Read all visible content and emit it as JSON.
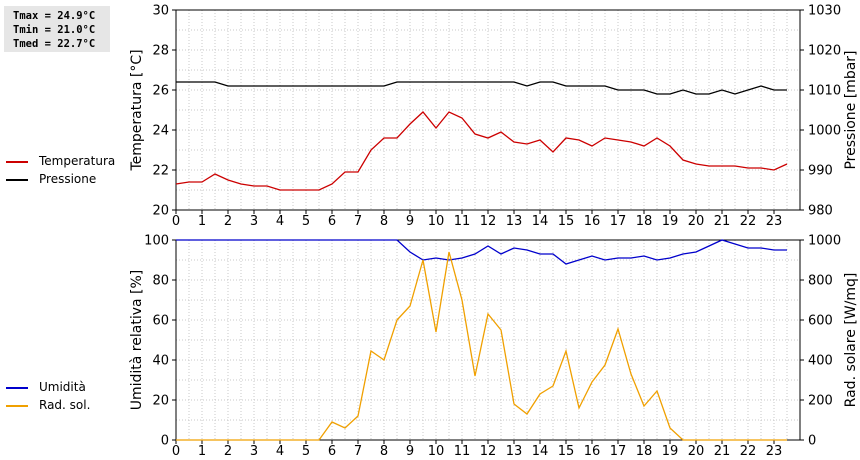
{
  "stats": {
    "tmax": "Tmax = 24.9°C",
    "tmin": "Tmin = 21.0°C",
    "tmed": "Tmed = 22.7°C"
  },
  "colors": {
    "temperature": "#cc0000",
    "pressure": "#000000",
    "humidity": "#0000cc",
    "solar": "#f0a000",
    "grid": "#c8c8c8"
  },
  "legend_top": [
    {
      "label": "Temperatura",
      "color": "#cc0000"
    },
    {
      "label": "Pressione",
      "color": "#000000"
    }
  ],
  "legend_bottom": [
    {
      "label": "Umidità",
      "color": "#0000cc"
    },
    {
      "label": "Rad. sol.",
      "color": "#f0a000"
    }
  ],
  "chart_data": [
    {
      "type": "line",
      "ylabel": "Temperatura [°C]",
      "y2label": "Pressione [mbar]",
      "ylim": [
        20,
        30
      ],
      "y2lim": [
        980,
        1030
      ],
      "yticks": [
        20,
        22,
        24,
        26,
        28,
        30
      ],
      "y2ticks": [
        980,
        990,
        1000,
        1010,
        1020,
        1030
      ],
      "xlim": [
        0,
        24
      ],
      "xticks": [
        0,
        1,
        2,
        3,
        4,
        5,
        6,
        7,
        8,
        9,
        10,
        11,
        12,
        13,
        14,
        15,
        16,
        17,
        18,
        19,
        20,
        21,
        22,
        23
      ],
      "grid": true,
      "x": [
        0,
        0.5,
        1,
        1.5,
        2,
        2.5,
        3,
        3.5,
        4,
        4.5,
        5,
        5.5,
        6,
        6.5,
        7,
        7.5,
        8,
        8.5,
        9,
        9.5,
        10,
        10.5,
        11,
        11.5,
        12,
        12.5,
        13,
        13.5,
        14,
        14.5,
        15,
        15.5,
        16,
        16.5,
        17,
        17.5,
        18,
        18.5,
        19,
        19.5,
        20,
        20.5,
        21,
        21.5,
        22,
        22.5,
        23,
        23.5
      ],
      "series": [
        {
          "name": "Temperatura",
          "axis": "left",
          "values": [
            21.3,
            21.4,
            21.4,
            21.8,
            21.5,
            21.3,
            21.2,
            21.2,
            21.0,
            21.0,
            21.0,
            21.0,
            21.3,
            21.9,
            21.9,
            23.0,
            23.6,
            23.6,
            24.3,
            24.9,
            24.1,
            24.9,
            24.6,
            23.8,
            23.6,
            23.9,
            23.4,
            23.3,
            23.5,
            22.9,
            23.6,
            23.5,
            23.2,
            23.6,
            23.5,
            23.4,
            23.2,
            23.6,
            23.2,
            22.5,
            22.3,
            22.2,
            22.2,
            22.2,
            22.1,
            22.1,
            22.0,
            22.3
          ]
        },
        {
          "name": "Pressione",
          "axis": "right",
          "values": [
            1012,
            1012,
            1012,
            1012,
            1011,
            1011,
            1011,
            1011,
            1011,
            1011,
            1011,
            1011,
            1011,
            1011,
            1011,
            1011,
            1011,
            1012,
            1012,
            1012,
            1012,
            1012,
            1012,
            1012,
            1012,
            1012,
            1012,
            1011,
            1012,
            1012,
            1011,
            1011,
            1011,
            1011,
            1010,
            1010,
            1010,
            1009,
            1009,
            1010,
            1009,
            1009,
            1010,
            1009,
            1010,
            1011,
            1010,
            1010
          ]
        }
      ]
    },
    {
      "type": "line",
      "ylabel": "Umidità relativa [%]",
      "y2label": "Rad. solare [W/mq]",
      "ylim": [
        0,
        100
      ],
      "y2lim": [
        0,
        1000
      ],
      "yticks": [
        0,
        20,
        40,
        60,
        80,
        100
      ],
      "y2ticks": [
        0,
        200,
        400,
        600,
        800,
        1000
      ],
      "xlim": [
        0,
        24
      ],
      "xticks": [
        0,
        1,
        2,
        3,
        4,
        5,
        6,
        7,
        8,
        9,
        10,
        11,
        12,
        13,
        14,
        15,
        16,
        17,
        18,
        19,
        20,
        21,
        22,
        23
      ],
      "grid": true,
      "x": [
        0,
        0.5,
        1,
        1.5,
        2,
        2.5,
        3,
        3.5,
        4,
        4.5,
        5,
        5.5,
        6,
        6.5,
        7,
        7.5,
        8,
        8.5,
        9,
        9.5,
        10,
        10.5,
        11,
        11.5,
        12,
        12.5,
        13,
        13.5,
        14,
        14.5,
        15,
        15.5,
        16,
        16.5,
        17,
        17.5,
        18,
        18.5,
        19,
        19.5,
        20,
        20.5,
        21,
        21.5,
        22,
        22.5,
        23,
        23.5
      ],
      "series": [
        {
          "name": "Umidità",
          "axis": "left",
          "values": [
            100,
            100,
            100,
            100,
            100,
            100,
            100,
            100,
            100,
            100,
            100,
            100,
            100,
            100,
            100,
            100,
            100,
            100,
            94,
            90,
            91,
            90,
            91,
            93,
            97,
            93,
            96,
            95,
            93,
            93,
            88,
            90,
            92,
            90,
            91,
            91,
            92,
            90,
            91,
            93,
            94,
            97,
            100,
            98,
            96,
            96,
            95,
            95
          ]
        },
        {
          "name": "Rad. sol.",
          "axis": "right",
          "values": [
            0,
            0,
            0,
            0,
            0,
            0,
            0,
            0,
            0,
            0,
            0,
            0,
            90,
            60,
            120,
            445,
            400,
            600,
            670,
            900,
            540,
            940,
            700,
            320,
            630,
            550,
            180,
            130,
            230,
            270,
            445,
            160,
            290,
            375,
            555,
            330,
            170,
            245,
            60,
            0,
            0,
            0,
            0,
            0,
            0,
            0,
            0,
            0
          ]
        }
      ]
    }
  ]
}
